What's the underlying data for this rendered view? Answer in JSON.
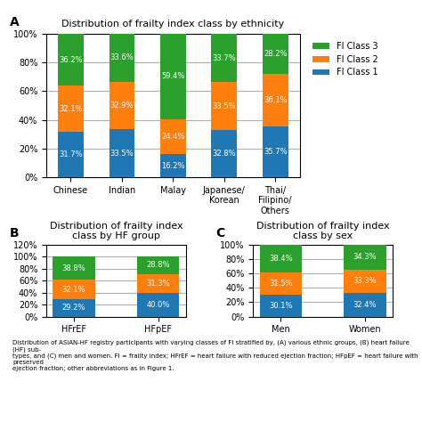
{
  "chart_data": [
    {
      "type": "bar",
      "stacked": true,
      "data_labels": true,
      "grid": true,
      "legend": "upper left",
      "title": "Distribution of frailty index class by ethnicity",
      "annotations": [
        "A"
      ],
      "categories": [
        "Chinese",
        "Indian",
        "Malay",
        "Japanese/\nKorean",
        "Thai/\nFilipino/\nOthers"
      ],
      "series": [
        {
          "name": "FI Class 1",
          "values": [
            31.7,
            33.5,
            16.2,
            32.8,
            35.7
          ],
          "value_labels": [
            "31.7%",
            "33.5%",
            "16.2%",
            "32.8%",
            "35.7%"
          ]
        },
        {
          "name": "FI Class 2",
          "values": [
            32.1,
            32.9,
            24.4,
            33.5,
            36.1
          ],
          "value_labels": [
            "32.1%",
            "32.9%",
            "24.4%",
            "33.5%",
            "36.1%"
          ]
        },
        {
          "name": "FI Class 3",
          "values": [
            36.2,
            33.6,
            59.4,
            33.7,
            28.2
          ],
          "value_labels": [
            "36.2%",
            "33.6%",
            "59.4%",
            "33.7%",
            "28.2%"
          ]
        }
      ],
      "ylim": [
        0,
        100
      ],
      "yticks": [
        {
          "value": 0,
          "label": "0%"
        },
        {
          "value": 20,
          "label": "20%"
        },
        {
          "value": 40,
          "label": "40%"
        },
        {
          "value": 60,
          "label": "60%"
        },
        {
          "value": 80,
          "label": "80%"
        },
        {
          "value": 100,
          "label": "100%"
        }
      ]
    },
    {
      "type": "bar",
      "stacked": true,
      "data_labels": true,
      "grid": true,
      "legend": false,
      "title": "Distribution of frailty index\nclass by HF group",
      "annotations": [
        "B"
      ],
      "categories": [
        "HFrEF",
        "HFpEF"
      ],
      "series": [
        {
          "name": "FI Class 1",
          "values": [
            29.2,
            40.0
          ],
          "value_labels": [
            "29.2%",
            "40.0%"
          ]
        },
        {
          "name": "FI Class 2",
          "values": [
            32.1,
            31.3
          ],
          "value_labels": [
            "32.1%",
            "31.3%"
          ]
        },
        {
          "name": "FI Class 3",
          "values": [
            38.8,
            28.8
          ],
          "value_labels": [
            "38.8%",
            "28.8%"
          ]
        }
      ],
      "ylim": [
        0,
        120
      ],
      "yticks": [
        {
          "value": 0,
          "label": "0%"
        },
        {
          "value": 20,
          "label": "20%"
        },
        {
          "value": 40,
          "label": "40%"
        },
        {
          "value": 60,
          "label": "60%"
        },
        {
          "value": 80,
          "label": "80%"
        },
        {
          "value": 100,
          "label": "100%"
        },
        {
          "value": 120,
          "label": "120%"
        }
      ]
    },
    {
      "type": "bar",
      "stacked": true,
      "data_labels": true,
      "grid": true,
      "legend": false,
      "title": "Distribution of frailty index\nclass by sex",
      "annotations": [
        "C"
      ],
      "categories": [
        "Men",
        "Women"
      ],
      "series": [
        {
          "name": "FI Class 1",
          "values": [
            30.1,
            32.4
          ],
          "value_labels": [
            "30.1%",
            "32.4%"
          ]
        },
        {
          "name": "FI Class 2",
          "values": [
            31.5,
            33.3
          ],
          "value_labels": [
            "31.5%",
            "33.3%"
          ]
        },
        {
          "name": "FI Class 3",
          "values": [
            38.4,
            34.3
          ],
          "value_labels": [
            "38.4%",
            "34.3%"
          ]
        }
      ],
      "ylim": [
        0,
        100
      ],
      "yticks": [
        {
          "value": 0,
          "label": "0%"
        },
        {
          "value": 20,
          "label": "20%"
        },
        {
          "value": 40,
          "label": "40%"
        },
        {
          "value": 60,
          "label": "60%"
        },
        {
          "value": 80,
          "label": "80%"
        },
        {
          "value": 100,
          "label": "100%"
        }
      ]
    }
  ],
  "caption": "Distribution of ASIAN-HF registry participants with varying classes of FI stratified by, (A) various ethnic groups, (B) heart failure (HF) sub-\ntypes, and (C) men and women. FI = frailty index; HFrEF = heart failure with reduced ejection fraction; HFpEF = heart failure with preserved\nejection fraction; other abbreviations as in Figure 1."
}
